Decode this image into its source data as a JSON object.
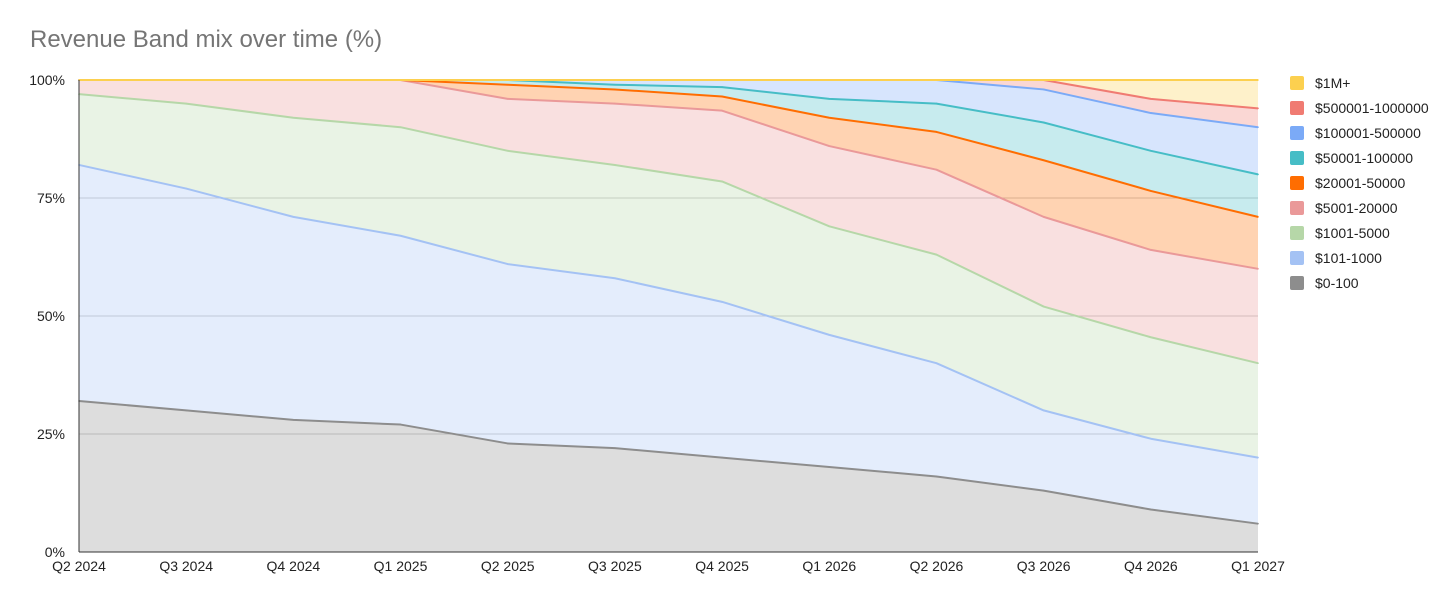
{
  "chart_data": {
    "type": "area",
    "stacked": "percent",
    "title": "Revenue Band mix over time (%)",
    "xlabel": "",
    "ylabel": "",
    "categories": [
      "Q2 2024",
      "Q3 2024",
      "Q4 2024",
      "Q1 2025",
      "Q2 2025",
      "Q3 2025",
      "Q4 2025",
      "Q1 2026",
      "Q2 2026",
      "Q3 2026",
      "Q4 2026",
      "Q1 2027"
    ],
    "y_ticks": [
      "0%",
      "25%",
      "50%",
      "75%",
      "100%"
    ],
    "ylim": [
      0,
      100
    ],
    "grid": true,
    "legend_position": "right",
    "series": [
      {
        "name": "$0-100",
        "color": "#8d8d8d",
        "values": [
          32,
          30,
          28,
          27,
          23,
          22,
          20,
          18,
          16,
          13,
          9,
          6
        ]
      },
      {
        "name": "$101-1000",
        "color": "#a4c2f4",
        "values": [
          50,
          47,
          43,
          40,
          38,
          36,
          33,
          28,
          24,
          17,
          15,
          14
        ]
      },
      {
        "name": "$1001-5000",
        "color": "#b6d7a8",
        "values": [
          15,
          18,
          21,
          23,
          24,
          24,
          25.5,
          23,
          23,
          22,
          21.5,
          20
        ]
      },
      {
        "name": "$5001-20000",
        "color": "#ea9999",
        "values": [
          3,
          5,
          8,
          10,
          11,
          13,
          15,
          17,
          18,
          19,
          18.5,
          20
        ]
      },
      {
        "name": "$20001-50000",
        "color": "#ff6d01",
        "values": [
          0,
          0,
          0,
          0,
          3,
          3,
          3,
          6,
          8,
          12,
          12.5,
          11
        ]
      },
      {
        "name": "$50001-100000",
        "color": "#46bdc6",
        "values": [
          0,
          0,
          0,
          0,
          1,
          1,
          2,
          4,
          6,
          8,
          8.5,
          9
        ]
      },
      {
        "name": "$100001-500000",
        "color": "#7baaf7",
        "values": [
          0,
          0,
          0,
          0,
          0,
          1,
          1.5,
          4,
          5,
          7,
          8,
          10
        ]
      },
      {
        "name": "$500001-1000000",
        "color": "#f07b72",
        "values": [
          0,
          0,
          0,
          0,
          0,
          0,
          0,
          0,
          0,
          2,
          3,
          4
        ]
      },
      {
        "name": "$1M+",
        "color": "#fcd04f",
        "values": [
          0,
          0,
          0,
          0,
          0,
          0,
          0,
          0,
          0,
          0,
          4,
          6
        ]
      }
    ]
  }
}
